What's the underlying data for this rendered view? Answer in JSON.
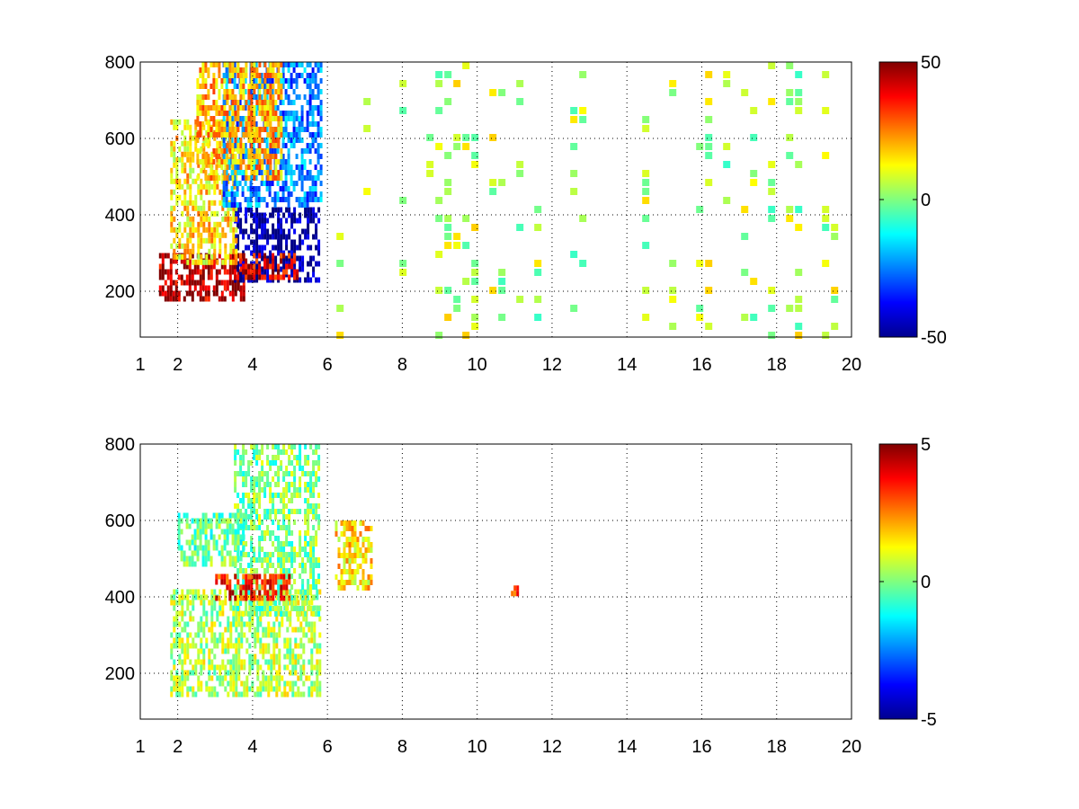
{
  "chart_data": [
    {
      "type": "heatmap",
      "title": "",
      "xlabel": "",
      "ylabel": "",
      "xlim": [
        1,
        20
      ],
      "ylim": [
        80,
        800
      ],
      "x_ticks": [
        "1",
        "2",
        "4",
        "6",
        "8",
        "10",
        "12",
        "14",
        "16",
        "18",
        "20"
      ],
      "x_tick_values": [
        1,
        2,
        4,
        6,
        8,
        10,
        12,
        14,
        16,
        18,
        20
      ],
      "y_ticks": [
        "200",
        "400",
        "600",
        "800"
      ],
      "y_tick_values": [
        200,
        400,
        600,
        800
      ],
      "grid": true,
      "colormap": "jet",
      "colorbar": {
        "range": [
          -50,
          50
        ],
        "ticks": [
          "50",
          "0",
          "-50"
        ],
        "tick_values": [
          50,
          0,
          -50
        ]
      },
      "features": [
        {
          "x": [
            1.5,
            3.8
          ],
          "y": [
            180,
            300
          ],
          "value": 45
        },
        {
          "x": [
            3.5,
            5.8
          ],
          "y": [
            230,
            420
          ],
          "value": -48
        },
        {
          "x": [
            3.5,
            5.2
          ],
          "y": [
            230,
            300
          ],
          "value": 40
        },
        {
          "x": [
            1.8,
            3.6
          ],
          "y": [
            280,
            650
          ],
          "value": 15
        },
        {
          "x": [
            3.2,
            5.8
          ],
          "y": [
            420,
            800
          ],
          "value": -25
        },
        {
          "x": [
            2.5,
            4.8
          ],
          "y": [
            500,
            800
          ],
          "value": 20
        },
        {
          "x": [
            6.0,
            20.0
          ],
          "y": [
            80,
            800
          ],
          "value": 5,
          "density": "sparse"
        }
      ]
    },
    {
      "type": "heatmap",
      "title": "",
      "xlabel": "",
      "ylabel": "",
      "xlim": [
        1,
        20
      ],
      "ylim": [
        80,
        800
      ],
      "x_ticks": [
        "1",
        "2",
        "4",
        "6",
        "8",
        "10",
        "12",
        "14",
        "16",
        "18",
        "20"
      ],
      "x_tick_values": [
        1,
        2,
        4,
        6,
        8,
        10,
        12,
        14,
        16,
        18,
        20
      ],
      "y_ticks": [
        "200",
        "400",
        "600",
        "800"
      ],
      "y_tick_values": [
        200,
        400,
        600,
        800
      ],
      "grid": true,
      "colormap": "jet",
      "colorbar": {
        "range": [
          -5,
          5
        ],
        "ticks": [
          "5",
          "0",
          "-5"
        ],
        "tick_values": [
          5,
          0,
          -5
        ]
      },
      "features": [
        {
          "x": [
            1.8,
            5.8
          ],
          "y": [
            150,
            420
          ],
          "value": 0.5
        },
        {
          "x": [
            3.5,
            5.8
          ],
          "y": [
            350,
            800
          ],
          "value": 0
        },
        {
          "x": [
            2.0,
            3.8
          ],
          "y": [
            480,
            620
          ],
          "value": -0.3
        },
        {
          "x": [
            3.0,
            5.0
          ],
          "y": [
            400,
            460
          ],
          "value": 3.5
        },
        {
          "x": [
            6.2,
            7.2
          ],
          "y": [
            420,
            600
          ],
          "value": 1.5
        },
        {
          "x": [
            10.9,
            11.1
          ],
          "y": [
            410,
            430
          ],
          "value": 3
        }
      ]
    }
  ]
}
